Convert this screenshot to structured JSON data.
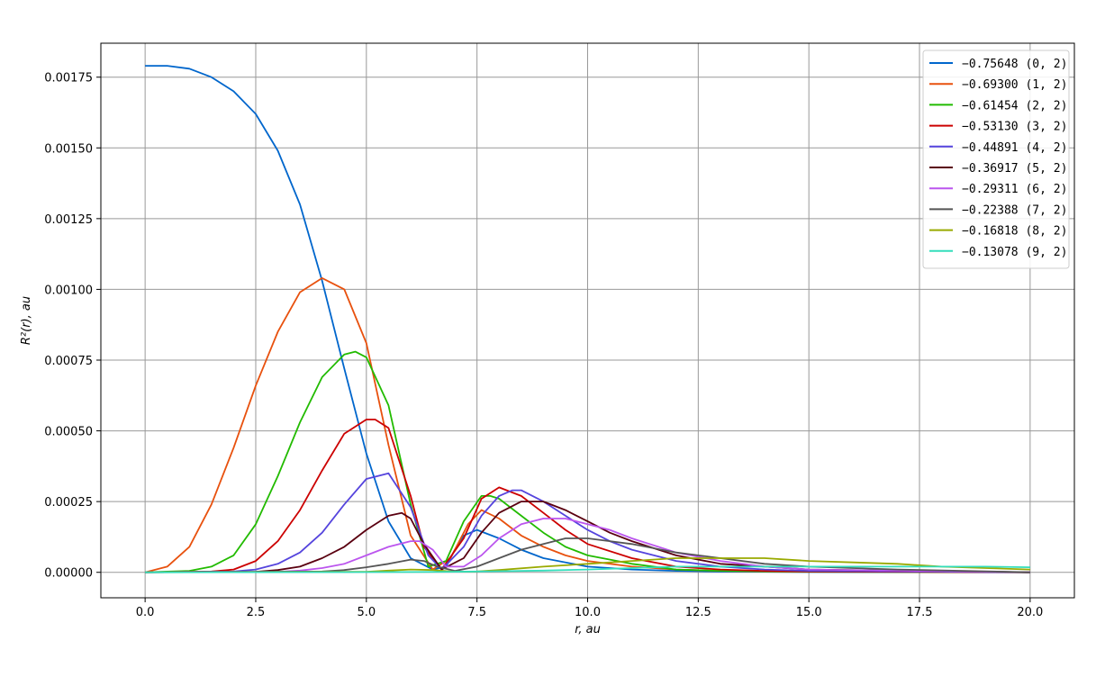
{
  "chart_data": {
    "type": "line",
    "xlabel": "r, au",
    "ylabel": "R²(r), au",
    "xlim": [
      -1.0,
      21.0
    ],
    "ylim": [
      -9e-05,
      0.00187
    ],
    "xticks": [
      "0.0",
      "2.5",
      "5.0",
      "7.5",
      "10.0",
      "12.5",
      "15.0",
      "17.5",
      "20.0"
    ],
    "yticks": [
      "0.00000",
      "0.00025",
      "0.00050",
      "0.00075",
      "0.00100",
      "0.00125",
      "0.00150",
      "0.00175"
    ],
    "grid": true,
    "legend_position": "top-right",
    "series": [
      {
        "name": "−0.75648 (0, 2)",
        "color": "#0066cc",
        "x": [
          0,
          0.5,
          1,
          1.5,
          2,
          2.5,
          3,
          3.5,
          4,
          4.5,
          5,
          5.5,
          6,
          6.5,
          6.8,
          7,
          7.2,
          7.5,
          8,
          8.5,
          9,
          10,
          11,
          12,
          13,
          14,
          15,
          20
        ],
        "y": [
          0.00179,
          0.00179,
          0.00178,
          0.00175,
          0.0017,
          0.00162,
          0.00149,
          0.0013,
          0.00103,
          0.00072,
          0.00042,
          0.00018,
          5e-05,
          1e-05,
          2e-05,
          8e-05,
          0.00013,
          0.00015,
          0.00012,
          8e-05,
          5e-05,
          2e-05,
          1e-05,
          5e-06,
          3e-06,
          2e-06,
          1e-06,
          0.0
        ]
      },
      {
        "name": "−0.69300 (1, 2)",
        "color": "#e8510e",
        "x": [
          0,
          0.5,
          1,
          1.5,
          2,
          2.5,
          3,
          3.5,
          4,
          4.5,
          5,
          5.5,
          6,
          6.5,
          6.9,
          7.3,
          7.6,
          8,
          8.5,
          9,
          9.5,
          10,
          11,
          12,
          13,
          14,
          15,
          20
        ],
        "y": [
          0.0,
          2e-05,
          9e-05,
          0.00024,
          0.00044,
          0.00066,
          0.00085,
          0.00099,
          0.00104,
          0.001,
          0.00081,
          0.00045,
          0.00013,
          1e-05,
          5e-05,
          0.00017,
          0.00022,
          0.00019,
          0.00013,
          9e-05,
          6e-05,
          4e-05,
          2e-05,
          1e-05,
          5e-06,
          3e-06,
          2e-06,
          0.0
        ]
      },
      {
        "name": "−0.61454 (2, 2)",
        "color": "#22bb00",
        "x": [
          0,
          1,
          1.5,
          2,
          2.5,
          3,
          3.5,
          4,
          4.5,
          4.75,
          5,
          5.5,
          6,
          6.4,
          6.8,
          7.2,
          7.6,
          7.8,
          8,
          8.5,
          9,
          9.5,
          10,
          11,
          12,
          13,
          15,
          20
        ],
        "y": [
          0.0,
          5e-06,
          2e-05,
          6e-05,
          0.00017,
          0.00034,
          0.00053,
          0.00069,
          0.00077,
          0.00078,
          0.00076,
          0.00059,
          0.00024,
          2e-05,
          4e-05,
          0.00018,
          0.00027,
          0.00027,
          0.00026,
          0.0002,
          0.00014,
          9e-05,
          6e-05,
          3e-05,
          1e-05,
          5e-06,
          2e-06,
          0.0
        ]
      },
      {
        "name": "−0.53130 (3, 2)",
        "color": "#cc0000",
        "x": [
          0,
          1.5,
          2,
          2.5,
          3,
          3.5,
          4,
          4.5,
          5,
          5.2,
          5.5,
          6,
          6.3,
          6.7,
          7.2,
          7.6,
          8,
          8.5,
          9,
          9.5,
          10,
          11,
          12,
          13,
          14,
          15,
          20
        ],
        "y": [
          0.0,
          3e-06,
          1e-05,
          4e-05,
          0.00011,
          0.00022,
          0.00036,
          0.00049,
          0.00054,
          0.00054,
          0.00051,
          0.00027,
          9e-05,
          1e-05,
          0.00012,
          0.00026,
          0.0003,
          0.00027,
          0.00021,
          0.00015,
          0.0001,
          5e-05,
          2e-05,
          1e-05,
          5e-06,
          3e-06,
          0.0
        ]
      },
      {
        "name": "−0.44891 (4, 2)",
        "color": "#5544dd",
        "x": [
          0,
          2,
          2.5,
          3,
          3.5,
          4,
          4.5,
          5,
          5.5,
          6,
          6.4,
          6.7,
          7.2,
          7.6,
          8,
          8.3,
          8.5,
          9,
          9.5,
          10,
          10.5,
          11,
          12,
          13,
          14,
          15,
          20
        ],
        "y": [
          0.0,
          3e-06,
          1e-05,
          3e-05,
          7e-05,
          0.00014,
          0.00024,
          0.00033,
          0.00035,
          0.00023,
          6e-05,
          1e-05,
          9e-05,
          0.0002,
          0.00027,
          0.00029,
          0.00029,
          0.00025,
          0.0002,
          0.00015,
          0.00011,
          8e-05,
          4e-05,
          2e-05,
          1e-05,
          5e-06,
          0.0
        ]
      },
      {
        "name": "−0.36917 (5, 2)",
        "color": "#5a0010",
        "x": [
          0,
          2.5,
          3,
          3.5,
          4,
          4.5,
          5,
          5.5,
          5.8,
          6,
          6.3,
          6.7,
          7.2,
          7.6,
          8,
          8.5,
          9,
          9.5,
          10,
          10.5,
          11,
          12,
          13,
          14,
          15,
          20
        ],
        "y": [
          0.0,
          2e-06,
          8e-06,
          2e-05,
          5e-05,
          9e-05,
          0.00015,
          0.0002,
          0.00021,
          0.00019,
          0.0001,
          1e-05,
          5e-05,
          0.00014,
          0.00021,
          0.00025,
          0.00025,
          0.00022,
          0.00018,
          0.00014,
          0.00011,
          6e-05,
          3e-05,
          2e-05,
          1e-05,
          0.0
        ]
      },
      {
        "name": "−0.29311 (6, 2)",
        "color": "#bb55ee",
        "x": [
          0,
          3,
          3.5,
          4,
          4.5,
          5,
          5.5,
          6,
          6.2,
          6.5,
          6.8,
          7.2,
          7.6,
          8,
          8.5,
          9,
          9.5,
          10,
          10.5,
          11,
          12,
          13,
          14,
          15,
          20
        ],
        "y": [
          0.0,
          2e-06,
          6e-06,
          1.5e-05,
          3e-05,
          6e-05,
          9e-05,
          0.00011,
          0.00011,
          8e-05,
          2e-05,
          2e-05,
          6e-05,
          0.00012,
          0.00017,
          0.00019,
          0.00019,
          0.00017,
          0.00015,
          0.00012,
          7e-05,
          4e-05,
          2e-05,
          1e-05,
          0.0
        ]
      },
      {
        "name": "−0.22388 (7, 2)",
        "color": "#555555",
        "x": [
          0,
          4,
          4.5,
          5,
          5.5,
          6,
          6.3,
          6.6,
          7,
          7.5,
          8,
          8.5,
          9,
          9.5,
          10,
          10.5,
          11,
          12,
          13,
          14,
          15,
          17,
          20
        ],
        "y": [
          0.0,
          3e-06,
          8e-06,
          1.8e-05,
          3e-05,
          4.5e-05,
          4e-05,
          2e-05,
          5e-06,
          2e-05,
          5e-05,
          8e-05,
          0.0001,
          0.00012,
          0.00012,
          0.00011,
          0.0001,
          7e-05,
          5e-05,
          3e-05,
          2e-05,
          1e-05,
          0.0
        ]
      },
      {
        "name": "−0.16818 (8, 2)",
        "color": "#99aa00",
        "x": [
          0,
          5,
          5.5,
          6,
          6.5,
          7,
          7.5,
          8,
          9,
          10,
          11,
          12,
          13,
          14,
          15,
          16,
          17,
          18,
          19,
          20
        ],
        "y": [
          0.0,
          2e-06,
          6e-06,
          1e-05,
          8e-06,
          2e-06,
          3e-06,
          8e-06,
          2e-05,
          3e-05,
          4e-05,
          5e-05,
          5e-05,
          5e-05,
          4e-05,
          3.5e-05,
          3e-05,
          2e-05,
          1.5e-05,
          1e-05
        ]
      },
      {
        "name": "−0.13078 (9, 2)",
        "color": "#33ddbb",
        "x": [
          0,
          6,
          7,
          8,
          9,
          10,
          11,
          12,
          13,
          14,
          15,
          16,
          17,
          18,
          19,
          20
        ],
        "y": [
          0.0,
          1e-06,
          2e-06,
          4e-06,
          6e-06,
          1e-05,
          1.5e-05,
          2e-05,
          2e-05,
          2e-05,
          2e-05,
          2e-05,
          2e-05,
          2e-05,
          2e-05,
          1.8e-05
        ]
      }
    ]
  }
}
